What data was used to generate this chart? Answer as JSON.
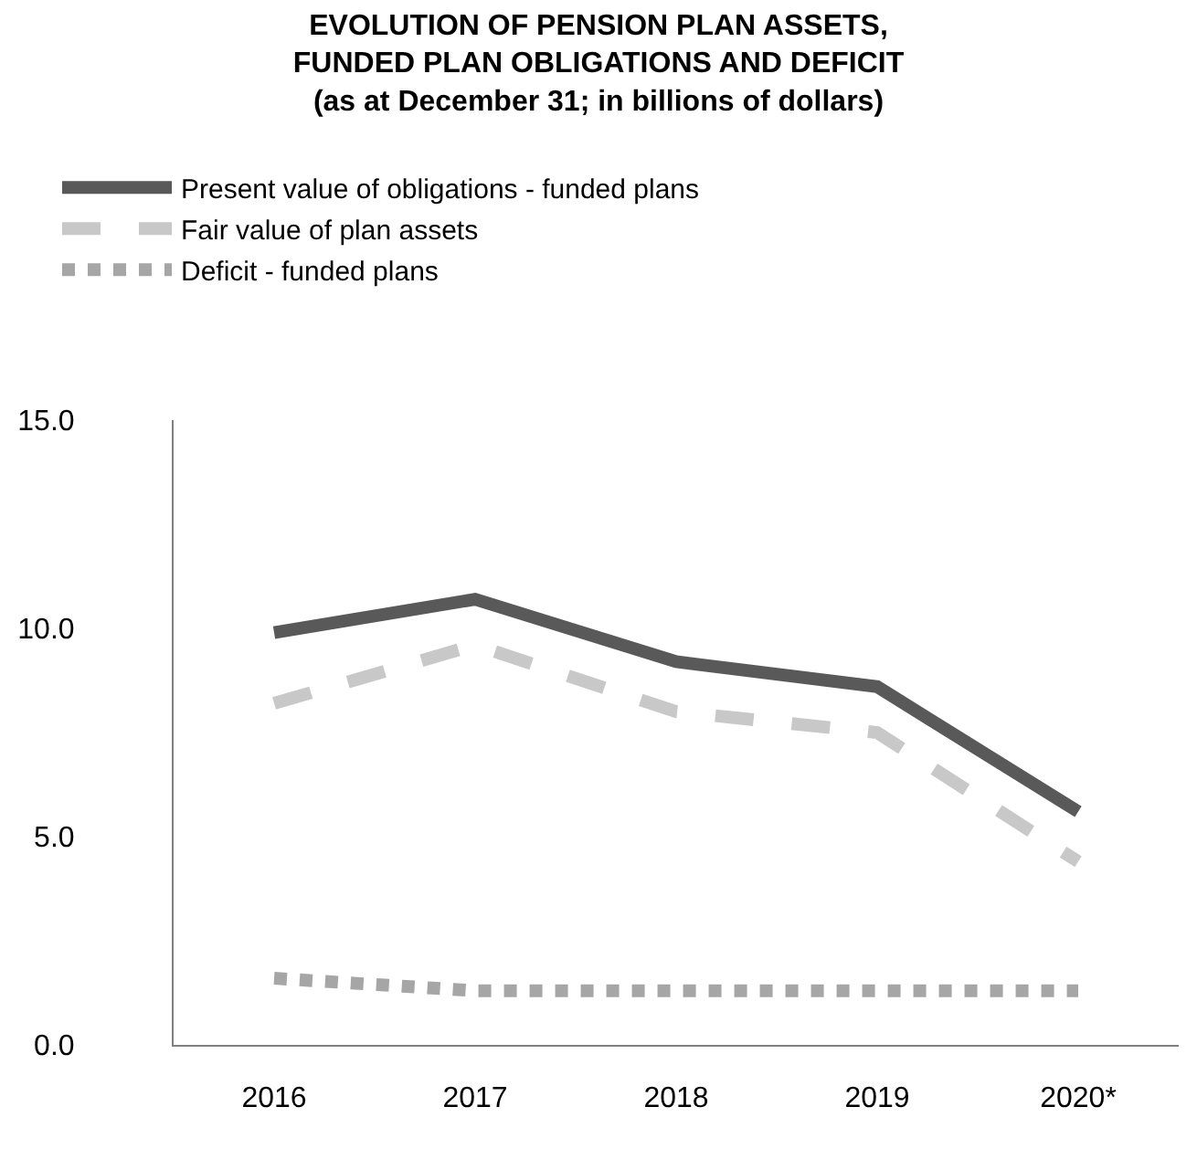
{
  "chart_data": {
    "type": "line",
    "title": "EVOLUTION OF PENSION PLAN ASSETS,\nFUNDED PLAN OBLIGATIONS AND DEFICIT\n(as at December 31; in billions of dollars)",
    "categories": [
      "2016",
      "2017",
      "2018",
      "2019",
      "2020*"
    ],
    "series": [
      {
        "name": "Present value of obligations - funded plans",
        "color": "#595959",
        "line_style": "solid",
        "values": [
          9.9,
          10.7,
          9.2,
          8.6,
          5.6
        ]
      },
      {
        "name": "Fair value of plan assets",
        "color": "#c8c8c8",
        "line_style": "dashed",
        "values": [
          8.2,
          9.6,
          8.0,
          7.5,
          4.4
        ]
      },
      {
        "name": "Deficit - funded plans",
        "color": "#a6a6a6",
        "line_style": "dotted",
        "values": [
          1.6,
          1.3,
          1.3,
          1.3,
          1.3
        ]
      }
    ],
    "ylim": [
      0,
      15
    ],
    "yticks": [
      {
        "value": 0,
        "label": "0.0"
      },
      {
        "value": 5,
        "label": "5.0"
      },
      {
        "value": 10,
        "label": "10.0"
      },
      {
        "value": 15,
        "label": "15.0"
      }
    ],
    "grid": false,
    "legend": "top left",
    "marker": "none"
  }
}
